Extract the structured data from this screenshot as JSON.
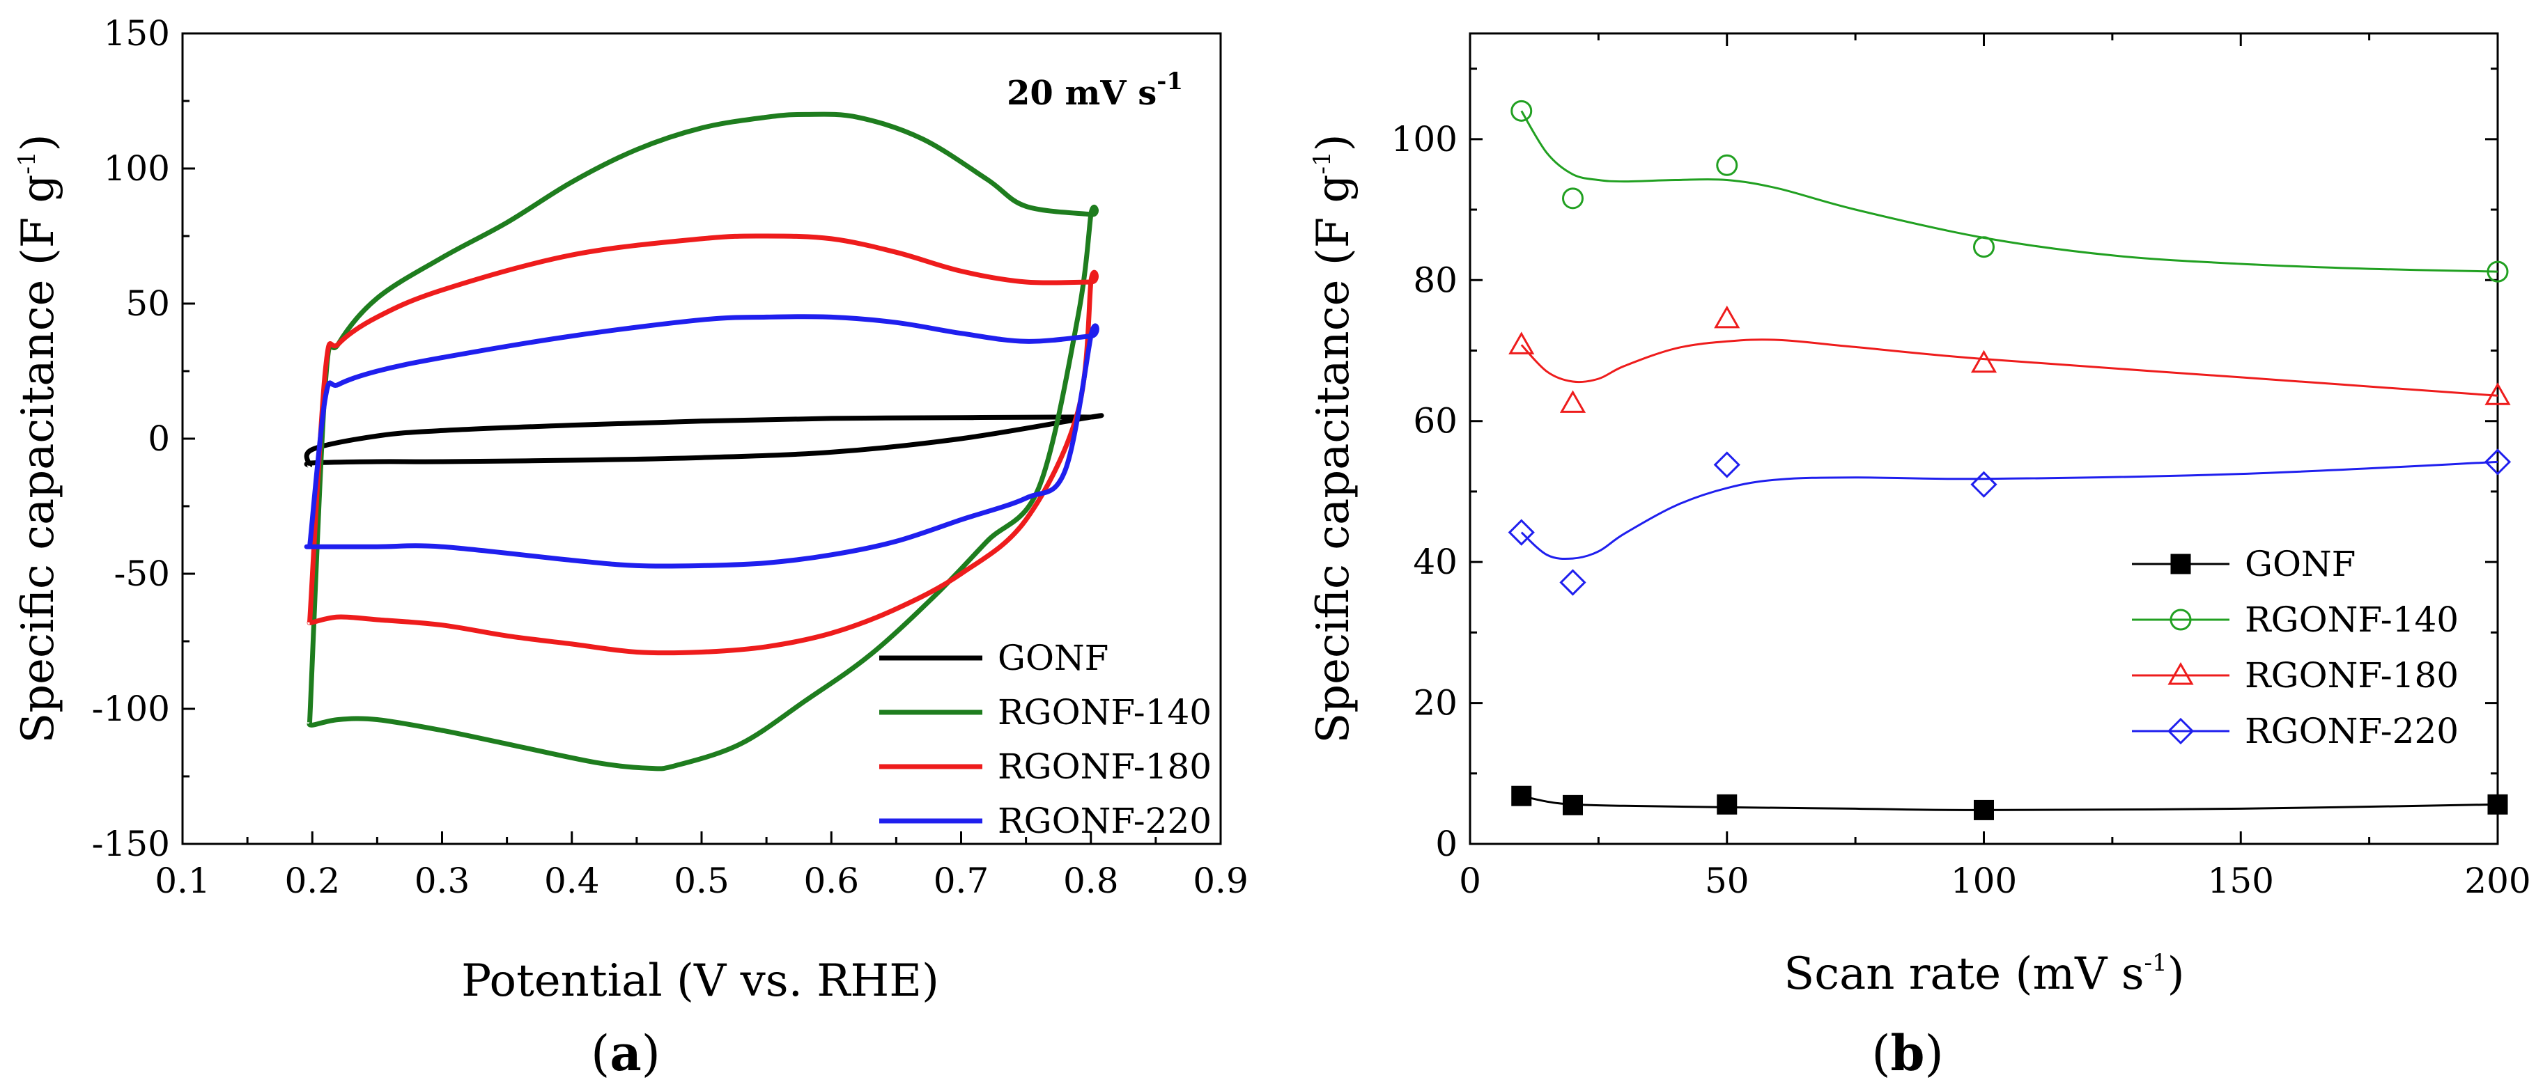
{
  "panel_a": {
    "caption_letter": "a",
    "annotation": {
      "main": "20 mV s",
      "sup": "-1"
    },
    "ylabel": {
      "main": "Specific capacitance (F g",
      "sup": "-1",
      "close": ")"
    },
    "xlabel": "Potential (V vs. RHE)"
  },
  "panel_b": {
    "caption_letter": "b",
    "ylabel": {
      "main": "Specific capacitance (F g",
      "sup": "-1",
      "close": ")"
    },
    "xlabel": {
      "main": "Scan rate (mV s",
      "sup": "-1",
      "close": ")"
    }
  },
  "colors": {
    "GONF": "#000000",
    "RGONF-140": "#1e7d1e",
    "RGONF-180": "#ee1c1c",
    "RGONF-220": "#1f1fee",
    "RGONF-140-b": "#21a021"
  },
  "chart_data": [
    {
      "type": "line",
      "title": "",
      "annotation": "20 mV s-1",
      "xlabel": "Potential (V vs. RHE)",
      "ylabel": "Specific capacitance (F g-1)",
      "xlim": [
        0.1,
        0.9
      ],
      "ylim": [
        -150,
        150
      ],
      "xticks": [
        0.1,
        0.2,
        0.3,
        0.4,
        0.5,
        0.6,
        0.7,
        0.8,
        0.9
      ],
      "xtick_labels": [
        "0.1",
        "0.2",
        "0.3",
        "0.4",
        "0.5",
        "0.6",
        "0.7",
        "0.8",
        "0.9"
      ],
      "yticks": [
        -150,
        -100,
        -50,
        0,
        50,
        100,
        150
      ],
      "ytick_labels": [
        "-150",
        "-100",
        "-50",
        "0",
        "50",
        "100",
        "150"
      ],
      "legend_position": "bottom-right",
      "series": [
        {
          "name": "GONF",
          "color": "#000000",
          "x": [
            0.198,
            0.2,
            0.25,
            0.3,
            0.4,
            0.5,
            0.6,
            0.7,
            0.78,
            0.8,
            0.8,
            0.7,
            0.6,
            0.5,
            0.4,
            0.3,
            0.25,
            0.2,
            0.198
          ],
          "y": [
            -10,
            -4,
            1,
            3,
            5,
            6.5,
            7.5,
            7.8,
            8,
            8,
            8,
            0,
            -5,
            -7,
            -8,
            -8.5,
            -8.5,
            -9,
            -10
          ]
        },
        {
          "name": "RGONF-140",
          "color": "#1e7d1e",
          "x": [
            0.198,
            0.21,
            0.22,
            0.25,
            0.3,
            0.35,
            0.4,
            0.45,
            0.5,
            0.55,
            0.58,
            0.62,
            0.67,
            0.72,
            0.75,
            0.8,
            0.8,
            0.79,
            0.76,
            0.72,
            0.68,
            0.63,
            0.58,
            0.53,
            0.48,
            0.46,
            0.42,
            0.35,
            0.3,
            0.25,
            0.22,
            0.2,
            0.198
          ],
          "y": [
            -105,
            20,
            35,
            52,
            67,
            80,
            95,
            107,
            115,
            119,
            120,
            119,
            111,
            96,
            86,
            83,
            83,
            45,
            -18,
            -38,
            -58,
            -80,
            -97,
            -113,
            -121,
            -122,
            -120,
            -113,
            -108,
            -104,
            -104,
            -106,
            -105
          ]
        },
        {
          "name": "RGONF-180",
          "color": "#ee1c1c",
          "x": [
            0.198,
            0.21,
            0.22,
            0.25,
            0.3,
            0.4,
            0.5,
            0.55,
            0.6,
            0.65,
            0.7,
            0.75,
            0.8,
            0.8,
            0.79,
            0.75,
            0.7,
            0.65,
            0.6,
            0.55,
            0.5,
            0.45,
            0.4,
            0.35,
            0.3,
            0.25,
            0.22,
            0.2,
            0.198
          ],
          "y": [
            -68,
            25,
            35,
            45,
            55,
            68,
            74,
            75,
            74,
            69,
            62,
            58,
            58,
            58,
            10,
            -30,
            -50,
            -63,
            -72,
            -77,
            -79,
            -79,
            -76,
            -73,
            -69,
            -67,
            -66,
            -68,
            -68
          ]
        },
        {
          "name": "RGONF-220",
          "color": "#1f1fee",
          "x": [
            0.198,
            0.21,
            0.22,
            0.25,
            0.3,
            0.4,
            0.5,
            0.55,
            0.6,
            0.65,
            0.7,
            0.75,
            0.8,
            0.8,
            0.78,
            0.75,
            0.7,
            0.65,
            0.6,
            0.55,
            0.5,
            0.45,
            0.4,
            0.3,
            0.25,
            0.2,
            0.198
          ],
          "y": [
            -40,
            15,
            20,
            25,
            30,
            38,
            44,
            45,
            45,
            43,
            39,
            36,
            38,
            38,
            -12,
            -22,
            -30,
            -38,
            -43,
            -46,
            -47,
            -47,
            -45,
            -40,
            -40,
            -40,
            -40
          ]
        }
      ],
      "legend": [
        "GONF",
        "RGONF-140",
        "RGONF-180",
        "RGONF-220"
      ]
    },
    {
      "type": "scatter",
      "title": "",
      "xlabel": "Scan rate (mV s-1)",
      "ylabel": "Specific capacitance (F g-1)",
      "xlim": [
        0,
        200
      ],
      "ylim": [
        0,
        115
      ],
      "xticks": [
        0,
        50,
        100,
        150,
        200
      ],
      "xtick_labels": [
        "0",
        "50",
        "100",
        "150",
        "200"
      ],
      "yticks": [
        0,
        20,
        40,
        60,
        80,
        100
      ],
      "ytick_labels": [
        "0",
        "20",
        "40",
        "60",
        "80",
        "100"
      ],
      "legend_position": "center-right",
      "series": [
        {
          "name": "GONF",
          "marker": "filled-square",
          "color": "#000000",
          "x": [
            10,
            20,
            50,
            100,
            200
          ],
          "y": [
            6.8,
            5.5,
            5.6,
            4.8,
            5.6
          ],
          "fit_x": [
            10,
            15,
            20,
            30,
            50,
            75,
            100,
            150,
            200
          ],
          "fit_y": [
            6.8,
            6.0,
            5.6,
            5.4,
            5.2,
            5.0,
            4.8,
            5.0,
            5.6
          ]
        },
        {
          "name": "RGONF-140",
          "marker": "open-circle",
          "color": "#21a021",
          "x": [
            10,
            20,
            50,
            100,
            200
          ],
          "y": [
            104,
            91.6,
            96.3,
            84.7,
            81.2
          ],
          "fit_x": [
            10,
            15,
            20,
            25,
            30,
            40,
            50,
            60,
            75,
            100,
            125,
            150,
            175,
            200
          ],
          "fit_y": [
            104,
            98,
            95,
            94.2,
            94,
            94.2,
            94.2,
            93,
            90,
            86,
            83.5,
            82.3,
            81.6,
            81.2
          ]
        },
        {
          "name": "RGONF-180",
          "marker": "open-triangle",
          "color": "#ee1c1c",
          "x": [
            10,
            20,
            50,
            100,
            200
          ],
          "y": [
            70.8,
            62.5,
            74.5,
            68.2,
            63.6
          ],
          "fit_x": [
            10,
            15,
            20,
            25,
            30,
            40,
            50,
            60,
            75,
            100,
            150,
            200
          ],
          "fit_y": [
            70.8,
            67,
            65.6,
            66,
            67.8,
            70.3,
            71.3,
            71.5,
            70.5,
            68.8,
            66.2,
            63.6
          ]
        },
        {
          "name": "RGONF-220",
          "marker": "open-diamond",
          "color": "#1f1fee",
          "x": [
            10,
            20,
            50,
            100,
            200
          ],
          "y": [
            44.2,
            37.1,
            53.8,
            51.0,
            54.2
          ],
          "fit_x": [
            10,
            15,
            20,
            25,
            30,
            40,
            50,
            60,
            75,
            100,
            150,
            200
          ],
          "fit_y": [
            44.2,
            41,
            40.5,
            41.5,
            44,
            48,
            50.5,
            51.7,
            52,
            51.8,
            52.5,
            54.2
          ]
        }
      ],
      "legend": [
        "GONF",
        "RGONF-140",
        "RGONF-180",
        "RGONF-220"
      ]
    }
  ]
}
